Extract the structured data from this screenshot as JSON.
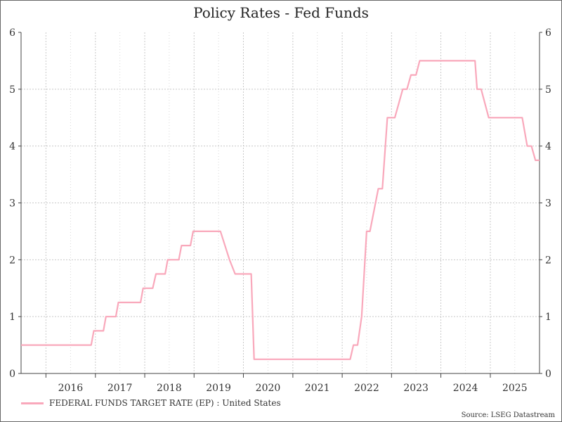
{
  "chart_data": {
    "type": "line",
    "title": "Policy Rates - Fed Funds",
    "xlabel": "",
    "ylabel": "",
    "ylim": [
      0,
      6
    ],
    "xlim": [
      "2015-07-01",
      "2025-12-31"
    ],
    "y_ticks": [
      0,
      1,
      2,
      3,
      4,
      5,
      6
    ],
    "x_tick_labels": [
      "2016",
      "2017",
      "2018",
      "2019",
      "2020",
      "2021",
      "2022",
      "2023",
      "2024",
      "2025"
    ],
    "grid": true,
    "legend_position": "bottom-left",
    "series": [
      {
        "name": "FEDERAL FUNDS TARGET RATE (EP) : United States",
        "color": "#f9a8bb",
        "points": [
          [
            "2015-07-01",
            0.5
          ],
          [
            "2016-12-01",
            0.5
          ],
          [
            "2016-12-20",
            0.75
          ],
          [
            "2017-03-01",
            0.75
          ],
          [
            "2017-03-20",
            1.0
          ],
          [
            "2017-06-01",
            1.0
          ],
          [
            "2017-06-20",
            1.25
          ],
          [
            "2017-12-01",
            1.25
          ],
          [
            "2017-12-20",
            1.5
          ],
          [
            "2018-03-01",
            1.5
          ],
          [
            "2018-03-25",
            1.75
          ],
          [
            "2018-06-01",
            1.75
          ],
          [
            "2018-06-20",
            2.0
          ],
          [
            "2018-09-10",
            2.0
          ],
          [
            "2018-09-30",
            2.25
          ],
          [
            "2018-12-05",
            2.25
          ],
          [
            "2018-12-25",
            2.5
          ],
          [
            "2019-07-15",
            2.5
          ],
          [
            "2019-09-20",
            2.0
          ],
          [
            "2019-11-01",
            1.75
          ],
          [
            "2020-02-28",
            1.75
          ],
          [
            "2020-03-20",
            0.25
          ],
          [
            "2022-03-01",
            0.25
          ],
          [
            "2022-03-25",
            0.5
          ],
          [
            "2022-04-25",
            0.5
          ],
          [
            "2022-05-25",
            1.0
          ],
          [
            "2022-07-01",
            2.5
          ],
          [
            "2022-07-25",
            2.5
          ],
          [
            "2022-09-25",
            3.25
          ],
          [
            "2022-10-25",
            3.25
          ],
          [
            "2022-12-01",
            4.5
          ],
          [
            "2023-01-25",
            4.5
          ],
          [
            "2023-03-25",
            5.0
          ],
          [
            "2023-04-25",
            5.0
          ],
          [
            "2023-05-25",
            5.25
          ],
          [
            "2023-07-01",
            5.25
          ],
          [
            "2023-07-28",
            5.5
          ],
          [
            "2024-09-10",
            5.5
          ],
          [
            "2024-09-25",
            5.0
          ],
          [
            "2024-10-25",
            5.0
          ],
          [
            "2024-12-20",
            4.5
          ],
          [
            "2025-08-25",
            4.5
          ],
          [
            "2025-10-01",
            4.0
          ],
          [
            "2025-11-01",
            4.0
          ],
          [
            "2025-12-01",
            3.75
          ],
          [
            "2025-12-31",
            3.75
          ]
        ]
      }
    ],
    "source": "Source: LSEG Datastream"
  }
}
